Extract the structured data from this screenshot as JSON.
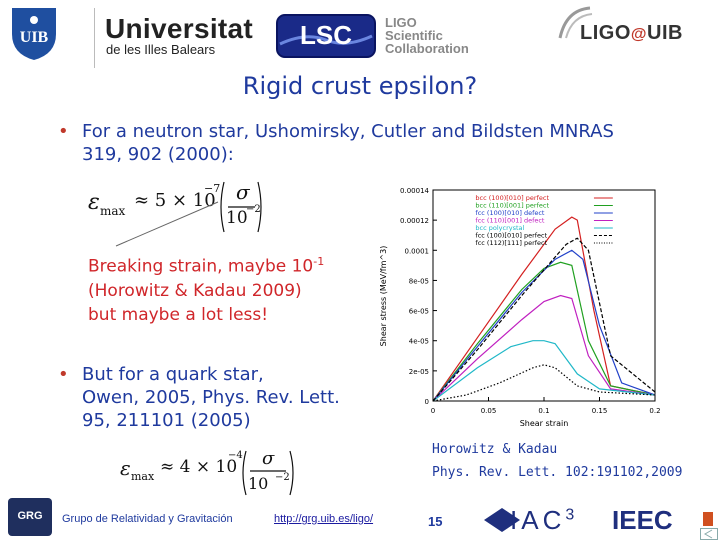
{
  "header": {
    "uib_name": "Universitat",
    "uib_sub": "de les Illes Balears",
    "uib_shield": "UIB",
    "lsc": "LSC",
    "ligo_lines": [
      "LIGO",
      "Scientific",
      "Collaboration"
    ],
    "ligo_uib_left": "LIGO",
    "ligo_uib_at": "@",
    "ligo_uib_right": "UIB"
  },
  "title": "Rigid crust epsilon?",
  "bullet1": {
    "line1": "For a neutron star, Ushomirsky, Cutler and Bildsten MNRAS",
    "line2": "319, 902 (2000):"
  },
  "eq1": {
    "lhs": "ε",
    "sub": "max",
    "approx": "≈ 5 × 10",
    "exp": "−7",
    "num": "σ",
    "den": "10",
    "den_exp": "−2"
  },
  "red": {
    "line1": "Breaking strain, maybe 10",
    "line1_sup": "-1",
    "line2": "(Horowitz & Kadau 2009)",
    "line3": "but maybe a lot less!"
  },
  "bullet2": {
    "line1": "But for a quark star,",
    "line2": "Owen, 2005, Phys. Rev. Lett.",
    "line3": "95, 211101 (2005)"
  },
  "eq2": {
    "lhs": "ε",
    "sub": "max",
    "approx": "≈ 4 × 10",
    "exp": "−4",
    "num": "σ",
    "den": "10",
    "den_exp": "−2"
  },
  "caption": {
    "line1": "Horowitz & Kadau",
    "line2": "Phys. Rev. Lett. 102:191102,2009"
  },
  "footer": {
    "group": "Grupo de Relatividad y Gravitación",
    "link": "http://grg.uib.es/ligo/",
    "page": "15",
    "grg_logo": "GRG",
    "iac": "IAC",
    "iac_sup": "3",
    "ieec": "IEEC"
  },
  "chart_data": {
    "type": "line",
    "xlabel": "Shear strain",
    "ylabel": "Shear stress (MeV/fm^3)",
    "xlim": [
      0,
      0.2
    ],
    "ylim": [
      0,
      0.00014
    ],
    "x_ticks": [
      "0",
      "0.05",
      "0.1",
      "0.15",
      "0.2"
    ],
    "y_ticks": [
      "0",
      "2e-05",
      "4e-05",
      "6e-05",
      "8e-05",
      "0.0001",
      "0.00012",
      "0.00014"
    ],
    "legend_position": "top-right",
    "series": [
      {
        "name": "bcc (100)[010] perfect",
        "color": "#d42020",
        "style": "solid",
        "x": [
          0,
          0.04,
          0.08,
          0.11,
          0.125,
          0.13,
          0.145,
          0.16,
          0.2
        ],
        "y": [
          0,
          4.2e-05,
          8.4e-05,
          0.000114,
          0.000122,
          0.00012,
          6e-05,
          1e-05,
          4e-06
        ]
      },
      {
        "name": "bcc (110)[001] perfect",
        "color": "#20a020",
        "style": "solid",
        "x": [
          0,
          0.04,
          0.08,
          0.1,
          0.115,
          0.125,
          0.14,
          0.16,
          0.2
        ],
        "y": [
          0,
          3.8e-05,
          7.4e-05,
          8.8e-05,
          9.2e-05,
          9e-05,
          4e-05,
          1e-05,
          4e-06
        ]
      },
      {
        "name": "fcc (100)[010] defect",
        "color": "#2040c8",
        "style": "solid",
        "x": [
          0,
          0.04,
          0.08,
          0.11,
          0.125,
          0.135,
          0.15,
          0.17,
          0.2
        ],
        "y": [
          0,
          3.6e-05,
          7.2e-05,
          9.4e-05,
          0.0001,
          9.4e-05,
          5e-05,
          1.2e-05,
          4e-06
        ]
      },
      {
        "name": "fcc (110)[001] defect",
        "color": "#c020c0",
        "style": "solid",
        "x": [
          0,
          0.04,
          0.08,
          0.1,
          0.115,
          0.125,
          0.14,
          0.16,
          0.2
        ],
        "y": [
          0,
          2.8e-05,
          5.4e-05,
          6.6e-05,
          7e-05,
          6.8e-05,
          3e-05,
          8e-06,
          4e-06
        ]
      },
      {
        "name": "bcc polycrystal",
        "color": "#20b8c8",
        "style": "solid",
        "x": [
          0,
          0.04,
          0.07,
          0.09,
          0.1,
          0.11,
          0.13,
          0.15,
          0.2
        ],
        "y": [
          0,
          2.2e-05,
          3.6e-05,
          4e-05,
          4e-05,
          3.8e-05,
          1.8e-05,
          8e-06,
          4e-06
        ]
      },
      {
        "name": "fcc (100)[010] perfect",
        "color": "#000000",
        "style": "dashed",
        "x": [
          0,
          0.04,
          0.08,
          0.12,
          0.13,
          0.14,
          0.16,
          0.2
        ],
        "y": [
          0,
          3.4e-05,
          7e-05,
          0.000104,
          0.000108,
          0.0001,
          3e-05,
          6e-06
        ]
      },
      {
        "name": "fcc (112)[111] perfect",
        "color": "#000000",
        "style": "dotted",
        "x": [
          0,
          0.03,
          0.06,
          0.09,
          0.1,
          0.11,
          0.13,
          0.15,
          0.2
        ],
        "y": [
          0,
          4e-06,
          1.2e-05,
          2.2e-05,
          2.4e-05,
          2.2e-05,
          1e-05,
          6e-06,
          4e-06
        ]
      }
    ]
  }
}
